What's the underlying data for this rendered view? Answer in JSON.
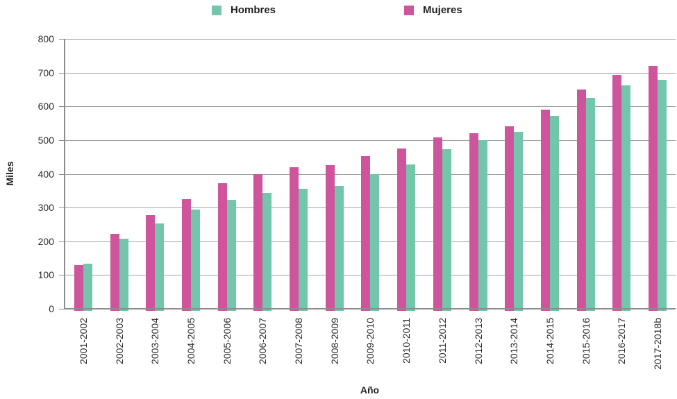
{
  "chart_data": {
    "type": "bar",
    "title": "",
    "xlabel": "Año",
    "ylabel": "Miles",
    "categories": [
      "2001-2002",
      "2002-2003",
      "2003-2004",
      "2004-2005",
      "2005-2006",
      "2006-2007",
      "2007-2008",
      "2008-2009",
      "2009-2010",
      "2010-2011",
      "2011-2012",
      "2012-2013",
      "2013-2014",
      "2014-2015",
      "2015-2016",
      "2016-2017",
      "2017-2018b"
    ],
    "series": [
      {
        "name": "Hombres",
        "color": "#73C6AC",
        "values": [
          134,
          208,
          254,
          295,
          323,
          343,
          355,
          365,
          400,
          428,
          473,
          499,
          524,
          571,
          626,
          662,
          678
        ]
      },
      {
        "name": "Mujeres",
        "color": "#CE559B",
        "values": [
          130,
          222,
          278,
          325,
          372,
          400,
          419,
          425,
          452,
          476,
          509,
          521,
          540,
          590,
          650,
          694,
          720
        ]
      }
    ],
    "group_bar_order": [
      "Mujeres",
      "Hombres"
    ],
    "ylim": [
      0,
      800
    ],
    "yticks": [
      800,
      700,
      600,
      500,
      400,
      300,
      200,
      100,
      0
    ],
    "grid": "horizontal-only",
    "legend_position": "top",
    "bar_label_rotation": -90
  },
  "colors": {
    "gridline": "#A0A0A0",
    "axis": "#8C8C8C",
    "text": "#231F20"
  }
}
